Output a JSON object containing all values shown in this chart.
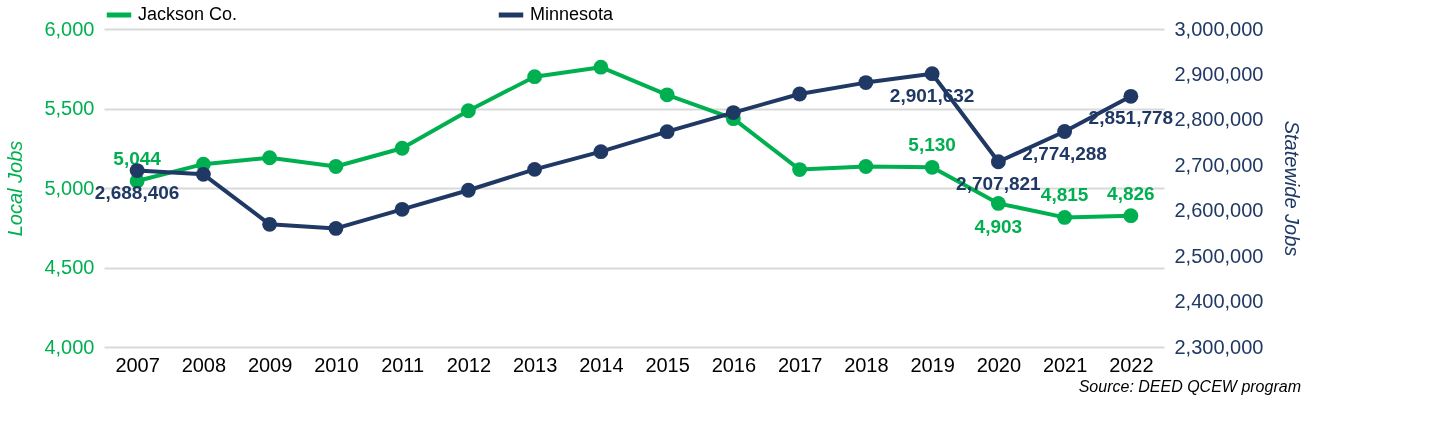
{
  "chart_data": {
    "type": "line",
    "categories": [
      "2007",
      "2008",
      "2009",
      "2010",
      "2011",
      "2012",
      "2013",
      "2014",
      "2015",
      "2016",
      "2017",
      "2018",
      "2019",
      "2020",
      "2021",
      "2022"
    ],
    "ylabel": "Local Jobs",
    "y2label": "Statewide Jobs",
    "ylim": [
      4000,
      6000
    ],
    "yticks": [
      {
        "value": 4000,
        "label": "4,000"
      },
      {
        "value": 4500,
        "label": "4,500"
      },
      {
        "value": 5000,
        "label": "5,000"
      },
      {
        "value": 5500,
        "label": "5,500"
      },
      {
        "value": 6000,
        "label": "6,000"
      }
    ],
    "y2lim": [
      2300000,
      3000000
    ],
    "y2ticks": [
      {
        "value": 2300000,
        "label": "2,300,000"
      },
      {
        "value": 2400000,
        "label": "2,400,000"
      },
      {
        "value": 2500000,
        "label": "2,500,000"
      },
      {
        "value": 2600000,
        "label": "2,600,000"
      },
      {
        "value": 2700000,
        "label": "2,700,000"
      },
      {
        "value": 2800000,
        "label": "2,800,000"
      },
      {
        "value": 2900000,
        "label": "2,900,000"
      },
      {
        "value": 3000000,
        "label": "3,000,000"
      }
    ],
    "series": [
      {
        "name": "Jackson Co.",
        "color": "#00b050",
        "values": [
          5044,
          5150,
          5190,
          5135,
          5250,
          5486,
          5700,
          5760,
          5586,
          5436,
          5116,
          5135,
          5130,
          4903,
          4815,
          4826
        ],
        "value_labels": [
          "5,044",
          null,
          null,
          null,
          null,
          null,
          null,
          null,
          null,
          null,
          null,
          null,
          "5,130",
          "4,903",
          "4,815",
          "4,826"
        ]
      },
      {
        "name": "Minnesota",
        "color": "#203864",
        "axis": "y2",
        "values": [
          2688406,
          2680000,
          2570000,
          2561000,
          2603000,
          2645000,
          2691000,
          2730000,
          2774000,
          2816000,
          2857000,
          2882000,
          2901632,
          2707821,
          2774288,
          2851778
        ],
        "value_labels": [
          "2,688,406",
          null,
          null,
          null,
          null,
          null,
          null,
          null,
          null,
          null,
          null,
          null,
          "2,901,632",
          "2,707,821",
          "2,774,288",
          "2,851,778"
        ]
      }
    ],
    "marker": "circle",
    "grid": "y",
    "legend": "top",
    "annotations": [
      "Source: DEED QCEW program"
    ]
  }
}
